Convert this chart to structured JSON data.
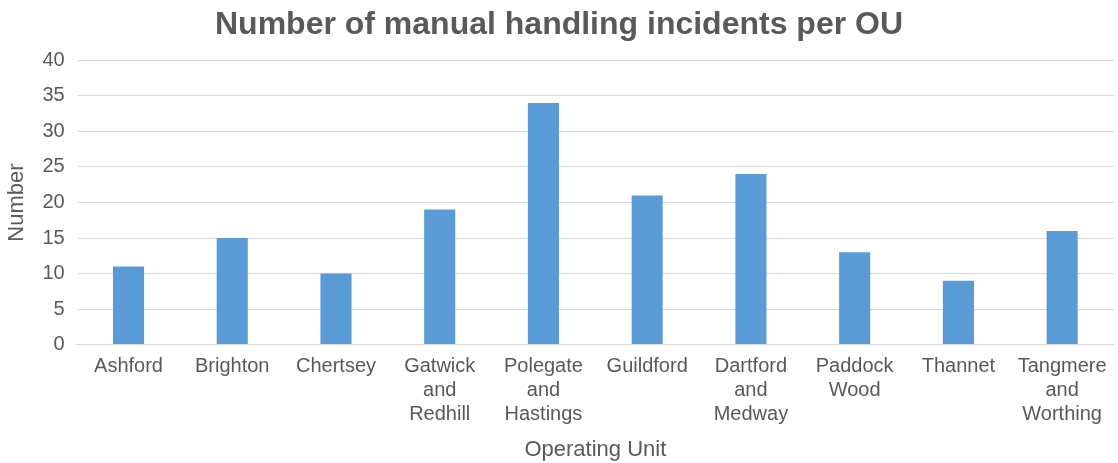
{
  "chart_data": {
    "type": "bar",
    "title": "Number of manual handling incidents per OU",
    "xlabel": "Operating Unit",
    "ylabel": "Number",
    "categories": [
      "Ashford",
      "Brighton",
      "Chertsey",
      "Gatwick and Redhill",
      "Polegate and Hastings",
      "Guildford",
      "Dartford and Medway",
      "Paddock Wood",
      "Thannet",
      "Tangmere and Worthing"
    ],
    "values": [
      11,
      15,
      10,
      19,
      34,
      21,
      24,
      13,
      9,
      16
    ],
    "color": "#5b9bd5",
    "ylim": [
      0,
      40
    ],
    "yticks": [
      0,
      5,
      10,
      15,
      20,
      25,
      30,
      35,
      40
    ],
    "grid": "y",
    "legend": false
  }
}
